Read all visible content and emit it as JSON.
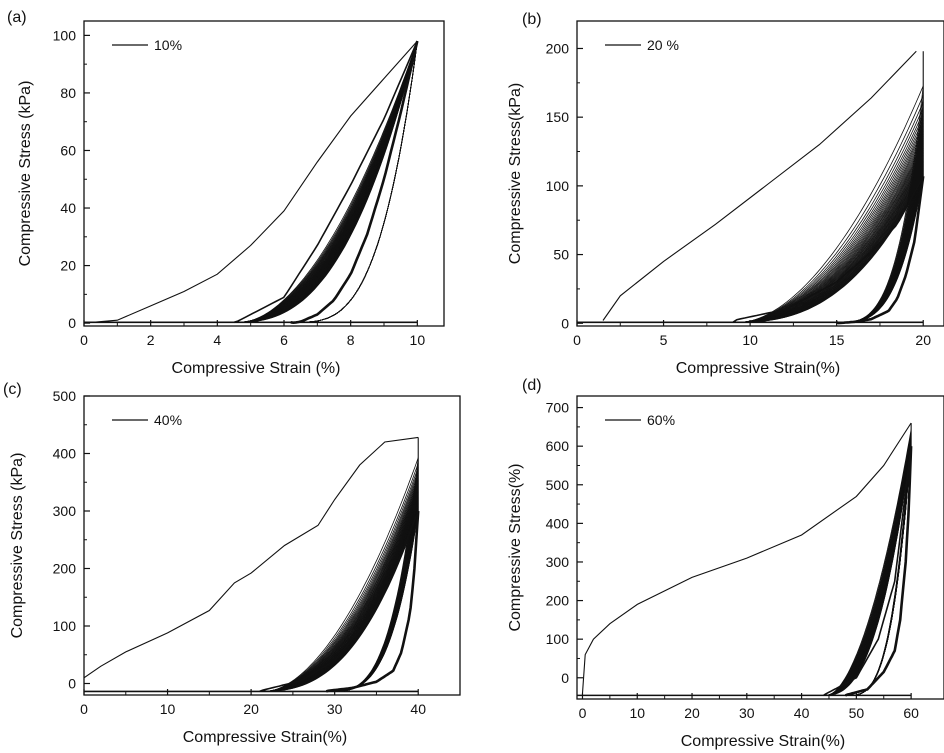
{
  "colors": {
    "line": "#111111",
    "background": "#ffffff"
  },
  "chart_data": [
    {
      "type": "line",
      "panel": "(a)",
      "xlabel": "Compressive Strain (%)",
      "ylabel": "Compressive Stress (kPa)",
      "xlim": [
        0,
        10.8
      ],
      "ylim": [
        -1,
        105
      ],
      "xticks": [
        0,
        2,
        4,
        6,
        8,
        10
      ],
      "yticks": [
        0,
        20,
        40,
        60,
        80,
        100
      ],
      "xticklabels": [
        "0",
        "2",
        "4",
        "6",
        "8",
        "10"
      ],
      "yticklabels": [
        "0",
        "20",
        "40",
        "60",
        "80",
        "100"
      ],
      "grid": false,
      "legend_position": "top-left",
      "legend": "10%",
      "cycles": 40,
      "max_strain": 10,
      "series": [
        {
          "curve": "first-loading",
          "x": [
            0,
            1,
            2,
            3,
            4,
            5,
            6,
            7,
            8,
            9,
            10
          ],
          "y": [
            0,
            1,
            6,
            11,
            17,
            27,
            39,
            56,
            72,
            85,
            98
          ]
        },
        {
          "curve": "late-loading",
          "x": [
            4.5,
            6,
            7,
            8,
            9,
            10
          ],
          "y": [
            0,
            9,
            27,
            48,
            71,
            98
          ]
        },
        {
          "curve": "unloading",
          "x": [
            10,
            9.5,
            9,
            8.5,
            8,
            7.5,
            7,
            6.5,
            6.2
          ],
          "y": [
            98,
            73,
            50,
            31,
            17,
            8,
            3,
            0.5,
            0
          ]
        }
      ]
    },
    {
      "type": "line",
      "panel": "(b)",
      "xlabel": "Compressive Strain(%)",
      "ylabel": "Compressive Stress(kPa)",
      "xlim": [
        0,
        21.2
      ],
      "ylim": [
        -2,
        220
      ],
      "xticks": [
        0,
        5,
        10,
        15,
        20
      ],
      "yticks": [
        0,
        50,
        100,
        150,
        200
      ],
      "xticklabels": [
        "0",
        "5",
        "10",
        "15",
        "20"
      ],
      "yticklabels": [
        "0",
        "50",
        "100",
        "150",
        "200"
      ],
      "grid": false,
      "legend_position": "top-left",
      "legend": "20 %",
      "cycles": 40,
      "max_strain": 20,
      "series": [
        {
          "curve": "first-loading",
          "x": [
            1.5,
            2.5,
            5,
            8,
            11,
            14,
            17,
            19.6
          ],
          "y": [
            2,
            20,
            45,
            72,
            101,
            130,
            164,
            198
          ]
        },
        {
          "curve": "peaks",
          "x": [
            20,
            20,
            20,
            20,
            20,
            20,
            20
          ],
          "y": [
            198,
            157,
            137,
            125,
            118,
            112,
            107
          ]
        },
        {
          "curve": "late-loading",
          "x": [
            9,
            12,
            15,
            17,
            18.5,
            20
          ],
          "y": [
            2,
            10,
            30,
            52,
            72,
            107
          ]
        },
        {
          "curve": "unloading",
          "x": [
            20,
            19.5,
            19,
            18.5,
            18,
            17,
            16,
            15
          ],
          "y": [
            107,
            60,
            35,
            18,
            9,
            3,
            1,
            0
          ]
        }
      ]
    },
    {
      "type": "line",
      "panel": "(c)",
      "xlabel": "Compressive Strain(%)",
      "ylabel": "Compressive Stress (kPa)",
      "xlim": [
        0,
        45
      ],
      "ylim": [
        -20,
        500
      ],
      "xticks": [
        0,
        10,
        20,
        30,
        40
      ],
      "yticks": [
        0,
        100,
        200,
        300,
        400,
        500
      ],
      "xticklabels": [
        "0",
        "10",
        "20",
        "30",
        "40"
      ],
      "yticklabels": [
        "0",
        "100",
        "200",
        "300",
        "400",
        "500"
      ],
      "grid": false,
      "legend_position": "top-left",
      "legend": "40%",
      "cycles": 40,
      "max_strain": 40,
      "series": [
        {
          "curve": "first-loading",
          "x": [
            0,
            2,
            5,
            10,
            15,
            18,
            20,
            24,
            28,
            30,
            33,
            36,
            40
          ],
          "y": [
            10,
            30,
            55,
            88,
            127,
            175,
            192,
            240,
            275,
            320,
            380,
            420,
            428
          ]
        },
        {
          "curve": "peaks",
          "x": [
            40,
            40,
            40,
            40,
            40,
            40
          ],
          "y": [
            428,
            380,
            360,
            340,
            320,
            300
          ]
        },
        {
          "curve": "late-loading",
          "x": [
            21,
            26,
            30,
            34,
            37,
            40
          ],
          "y": [
            -13,
            5,
            40,
            110,
            190,
            300
          ]
        },
        {
          "curve": "unloading",
          "x": [
            40,
            39.5,
            39,
            38,
            37,
            35,
            32,
            29
          ],
          "y": [
            300,
            190,
            120,
            55,
            22,
            3,
            -8,
            -13
          ]
        }
      ]
    },
    {
      "type": "line",
      "panel": "(d)",
      "xlabel": "Compressive Strain(%)",
      "ylabel": "Compressive Stress(%)",
      "xlim": [
        -1,
        66
      ],
      "ylim": [
        -55,
        730
      ],
      "xticks": [
        0,
        10,
        20,
        30,
        40,
        50,
        60
      ],
      "yticks": [
        0,
        100,
        200,
        300,
        400,
        500,
        600,
        700
      ],
      "xticklabels": [
        "0",
        "10",
        "20",
        "30",
        "40",
        "50",
        "60"
      ],
      "yticklabels": [
        "0",
        "100",
        "200",
        "300",
        "400",
        "500",
        "600",
        "700"
      ],
      "grid": false,
      "legend_position": "top-left",
      "legend": "60%",
      "cycles": 40,
      "max_strain": 60,
      "series": [
        {
          "curve": "first-loading",
          "x": [
            0,
            0.5,
            2,
            5,
            10,
            20,
            30,
            40,
            50,
            55,
            60
          ],
          "y": [
            -40,
            60,
            100,
            140,
            190,
            260,
            310,
            370,
            470,
            550,
            660
          ]
        },
        {
          "curve": "peaks",
          "x": [
            60,
            60,
            60,
            60,
            60
          ],
          "y": [
            660,
            640,
            625,
            612,
            600
          ]
        },
        {
          "curve": "late-loading",
          "x": [
            44,
            50,
            54,
            57,
            60
          ],
          "y": [
            -45,
            0,
            100,
            250,
            600
          ]
        },
        {
          "curve": "unloading",
          "x": [
            60,
            59.5,
            59,
            58,
            57,
            55,
            52,
            48
          ],
          "y": [
            600,
            420,
            300,
            150,
            70,
            15,
            -30,
            -45
          ]
        }
      ]
    }
  ]
}
